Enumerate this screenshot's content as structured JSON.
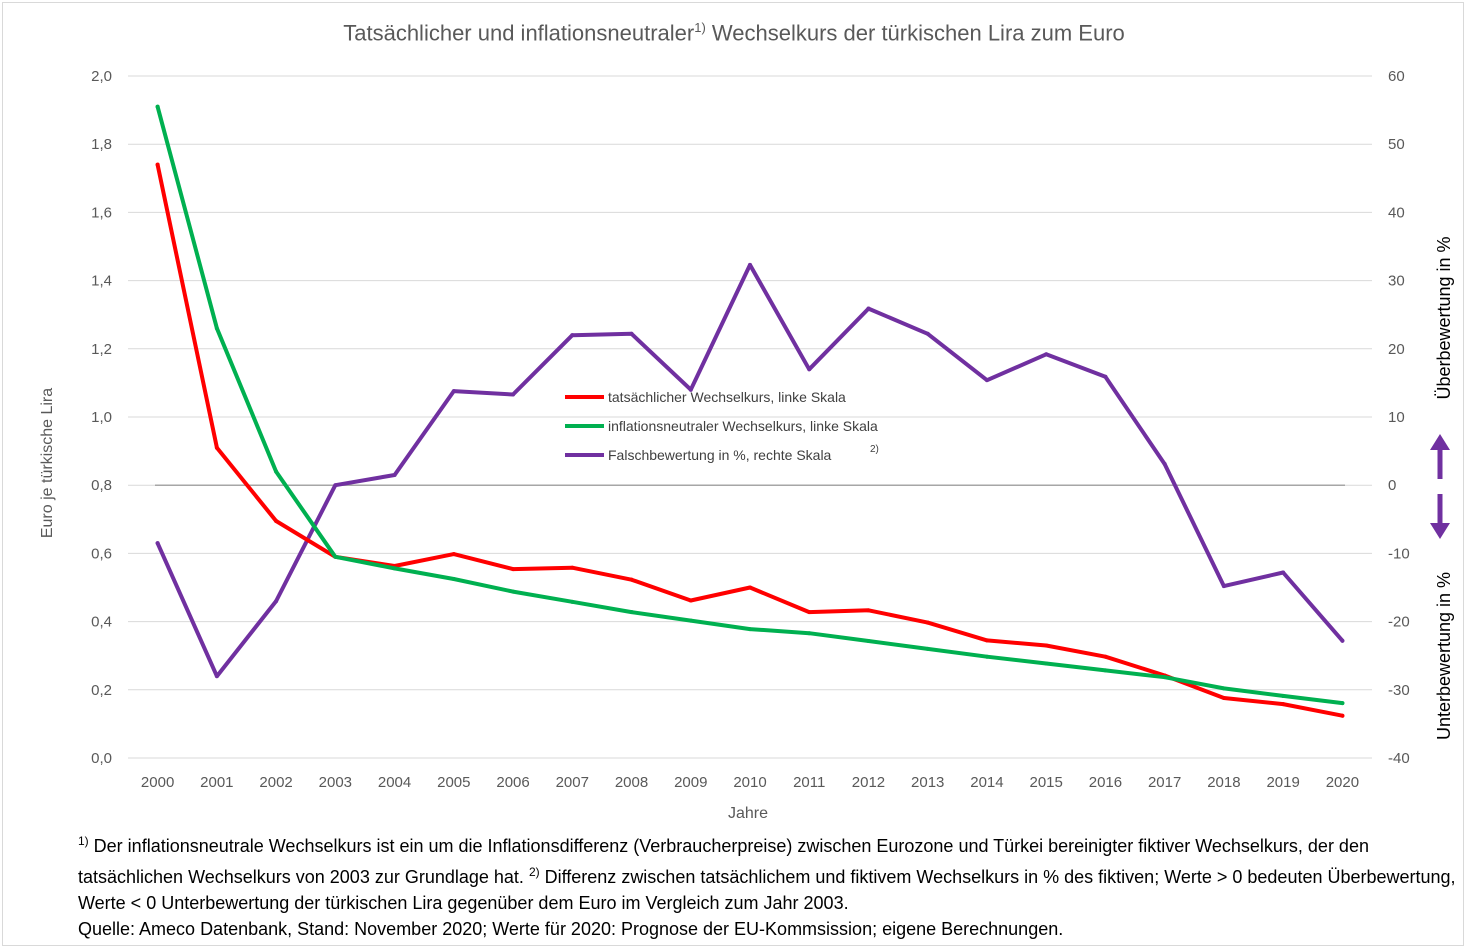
{
  "title_pre": "Tatsächlicher und inflationsneutraler",
  "title_sup": "1)",
  "title_post": " Wechselkurs der türkischen Lira zum Euro",
  "footnote": {
    "sup1": "1)",
    "text1": " Der inflationsneutrale Wechselkurs ist ein um die Inflationsdifferenz (Verbraucherpreise) zwischen Eurozone und Türkei bereinigter fiktiver Wechselkurs, der den tatsächlichen Wechselkurs von 2003 zur Grundlage hat. ",
    "sup2": "2)",
    "text2": " Differenz zwischen tatsächlichem und fiktivem Wechselkurs in % des fiktiven; Werte > 0 bedeuten Überbewertung, Werte < 0 Unterbewertung der türkischen Lira gegenüber dem Euro im Vergleich zum Jahr 2003.",
    "source": "Quelle: Ameco Datenbank, Stand: November 2020; Werte für 2020: Prognose der EU-Kommsission; eigene Berechnungen."
  },
  "colors": {
    "red": "#ff0000",
    "green": "#00b050",
    "purple": "#7030a0",
    "zero": "#a6a6a6",
    "grid": "#d9d9d9"
  },
  "chart_data": {
    "type": "line",
    "title": "Tatsächlicher und inflationsneutraler1) Wechselkurs der türkischen Lira zum Euro",
    "xlabel": "Jahre",
    "ylabel": "Euro je türkische Lira",
    "y2label_top": "Überbewertung in %",
    "y2label_bottom": "Unterbewertung in %",
    "x": [
      "2000",
      "2001",
      "2002",
      "2003",
      "2004",
      "2005",
      "2006",
      "2007",
      "2008",
      "2009",
      "2010",
      "2011",
      "2012",
      "2013",
      "2014",
      "2015",
      "2016",
      "2017",
      "2018",
      "2019",
      "2020"
    ],
    "ylim": [
      0,
      2.0
    ],
    "y2lim": [
      -40,
      60
    ],
    "yticks": [
      "0,0",
      "0,2",
      "0,4",
      "0,6",
      "0,8",
      "1,0",
      "1,2",
      "1,4",
      "1,6",
      "1,8",
      "2,0"
    ],
    "y2ticks": [
      "-40",
      "-30",
      "-20",
      "-10",
      "0",
      "10",
      "20",
      "30",
      "40",
      "50",
      "60"
    ],
    "series": [
      {
        "name": "tatsächlicher Wechselkurs, linke Skala",
        "axis": "left",
        "color": "#ff0000",
        "values": [
          1.74,
          0.91,
          0.695,
          0.59,
          0.563,
          0.598,
          0.554,
          0.558,
          0.523,
          0.462,
          0.5,
          0.428,
          0.433,
          0.397,
          0.345,
          0.33,
          0.297,
          0.242,
          0.176,
          0.158,
          0.124
        ]
      },
      {
        "name": "inflationsneutraler Wechselkurs, linke Skala",
        "axis": "left",
        "color": "#00b050",
        "values": [
          1.91,
          1.26,
          0.84,
          0.59,
          0.556,
          0.525,
          0.488,
          0.458,
          0.428,
          0.403,
          0.378,
          0.366,
          0.343,
          0.32,
          0.297,
          0.277,
          0.257,
          0.237,
          0.204,
          0.182,
          0.161
        ]
      },
      {
        "name": "Falschbewertung in %, rechte Skala",
        "sup": "2)",
        "axis": "right",
        "color": "#7030a0",
        "values": [
          -8.5,
          -28,
          -17,
          0,
          1.5,
          13.8,
          13.3,
          22,
          22.2,
          14,
          32.3,
          17,
          25.9,
          22.2,
          15.4,
          19.2,
          15.9,
          3.1,
          -14.8,
          -12.8,
          -22.8
        ]
      }
    ],
    "legend_position": "center"
  }
}
